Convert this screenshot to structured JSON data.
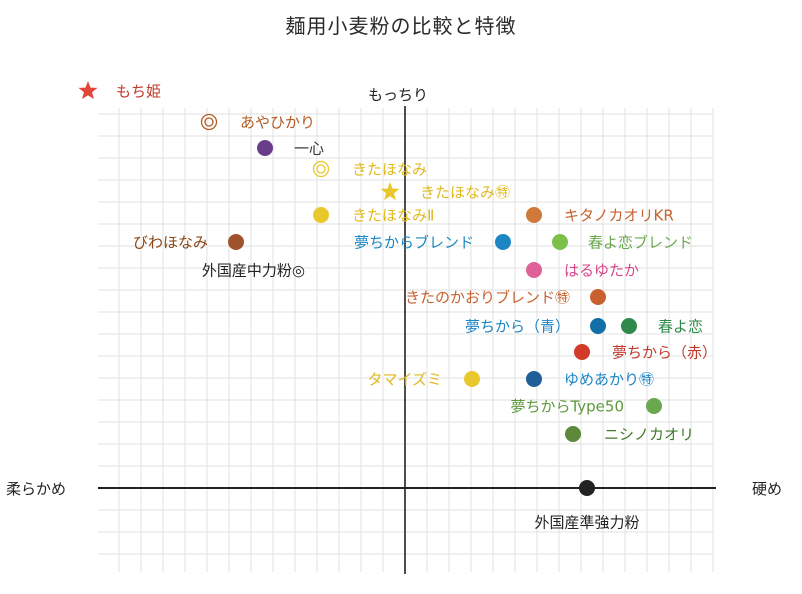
{
  "title": "麺用小麦粉の比較と特徴",
  "axes": {
    "top": "もっちり",
    "left": "柔らかめ",
    "right": "硬め"
  },
  "colors": {
    "brown": "#b55a22",
    "purple": "#6a3d8a",
    "yellow": "#e9c82e",
    "orange": "#cf7a3a",
    "blue": "#1c86c4",
    "green": "#7cc04a",
    "pink": "#e0609a",
    "darkorange": "#c8612e",
    "navy": "#0f6fa6",
    "darkgreen": "#2e8a4a",
    "red": "#d23a2a",
    "navy2": "#1e5f9a",
    "green2": "#6aa84f",
    "olive": "#5c8a3a",
    "black": "#222222",
    "star_red": "#e2463a",
    "star_yellow": "#e9c82e"
  },
  "items": [
    {
      "label": "もち姫",
      "marker": "star",
      "color": "#e2463a",
      "text_color": "#c0392b",
      "x": -3.0,
      "y": 4.55
    },
    {
      "label": "あやひかり",
      "marker": "◎",
      "color": "#b55a22",
      "text_color": "#b55a22",
      "x": -1.7,
      "y": 4.3
    },
    {
      "label": "一心",
      "marker": "dot",
      "color": "#6a3d8a",
      "text_color": "#333333",
      "x": -1.3,
      "y": 4.0
    },
    {
      "label": "きたほなみ",
      "marker": "◎",
      "color": "#e9c82e",
      "text_color": "#e0b81e",
      "x": -0.8,
      "y": 3.75
    },
    {
      "label": "きたほなみ㊕",
      "marker": "star",
      "color": "#e9c82e",
      "text_color": "#e0b81e",
      "x": -0.15,
      "y": 3.45
    },
    {
      "label": "きたほなみⅡ",
      "marker": "dot",
      "color": "#e9c82e",
      "text_color": "#e0b81e",
      "x": -0.8,
      "y": 3.15
    },
    {
      "label": "キタノカオリKR",
      "marker": "dot",
      "color": "#cf7a3a",
      "text_color": "#c8612e",
      "x": 1.25,
      "y": 3.15
    },
    {
      "label": "びわほなみ",
      "marker": "dot",
      "color": "#a0522d",
      "text_color": "#8b4513",
      "x": -1.55,
      "y": 2.85
    },
    {
      "label": "外国産中力粉◎",
      "marker": "none",
      "color": "#222222",
      "text_color": "#222222",
      "x": -1.55,
      "y": 2.55
    },
    {
      "label": "夢ちからブレンド",
      "marker": "dot",
      "color": "#1c86c4",
      "text_color": "#1c86c4",
      "x": 0.9,
      "y": 2.85
    },
    {
      "label": "春よ恋ブレンド",
      "marker": "dot",
      "color": "#7cc04a",
      "text_color": "#6aa84f",
      "x": 1.55,
      "y": 2.85
    },
    {
      "label": "はるゆたか",
      "marker": "dot",
      "color": "#e0609a",
      "text_color": "#d9478a",
      "x": 1.25,
      "y": 2.55
    },
    {
      "label": "きたのかおりブレンド㊕",
      "marker": "dot",
      "color": "#c8612e",
      "text_color": "#c8612e",
      "x": 1.9,
      "y": 2.25
    },
    {
      "label": "夢ちから（青）",
      "marker": "dot",
      "color": "#0f6fa6",
      "text_color": "#1c86c4",
      "x": 1.9,
      "y": 1.95
    },
    {
      "label": "春よ恋",
      "marker": "dot",
      "color": "#2e8a4a",
      "text_color": "#2e8a4a",
      "x": 2.2,
      "y": 1.95
    },
    {
      "label": "夢ちから（赤）",
      "marker": "dot",
      "color": "#d23a2a",
      "text_color": "#c0392b",
      "x": 1.75,
      "y": 1.65
    },
    {
      "label": "タマイズミ",
      "marker": "dot",
      "color": "#e9c82e",
      "text_color": "#e0b81e",
      "x": 0.65,
      "y": 1.35
    },
    {
      "label": "ゆめあかり㊕",
      "marker": "dot",
      "color": "#1e5f9a",
      "text_color": "#1c86c4",
      "x": 1.25,
      "y": 1.35
    },
    {
      "label": "夢ちからType50",
      "marker": "dot",
      "color": "#6aa84f",
      "text_color": "#5c9a3a",
      "x": 2.45,
      "y": 1.05
    },
    {
      "label": "ニシノカオリ",
      "marker": "dot",
      "color": "#5c8a3a",
      "text_color": "#3f7a2a",
      "x": 1.65,
      "y": 0.7
    },
    {
      "label": "外国産準強力粉",
      "marker": "dot",
      "color": "#222222",
      "text_color": "#222222",
      "x": 1.8,
      "y": 0.0
    }
  ]
}
